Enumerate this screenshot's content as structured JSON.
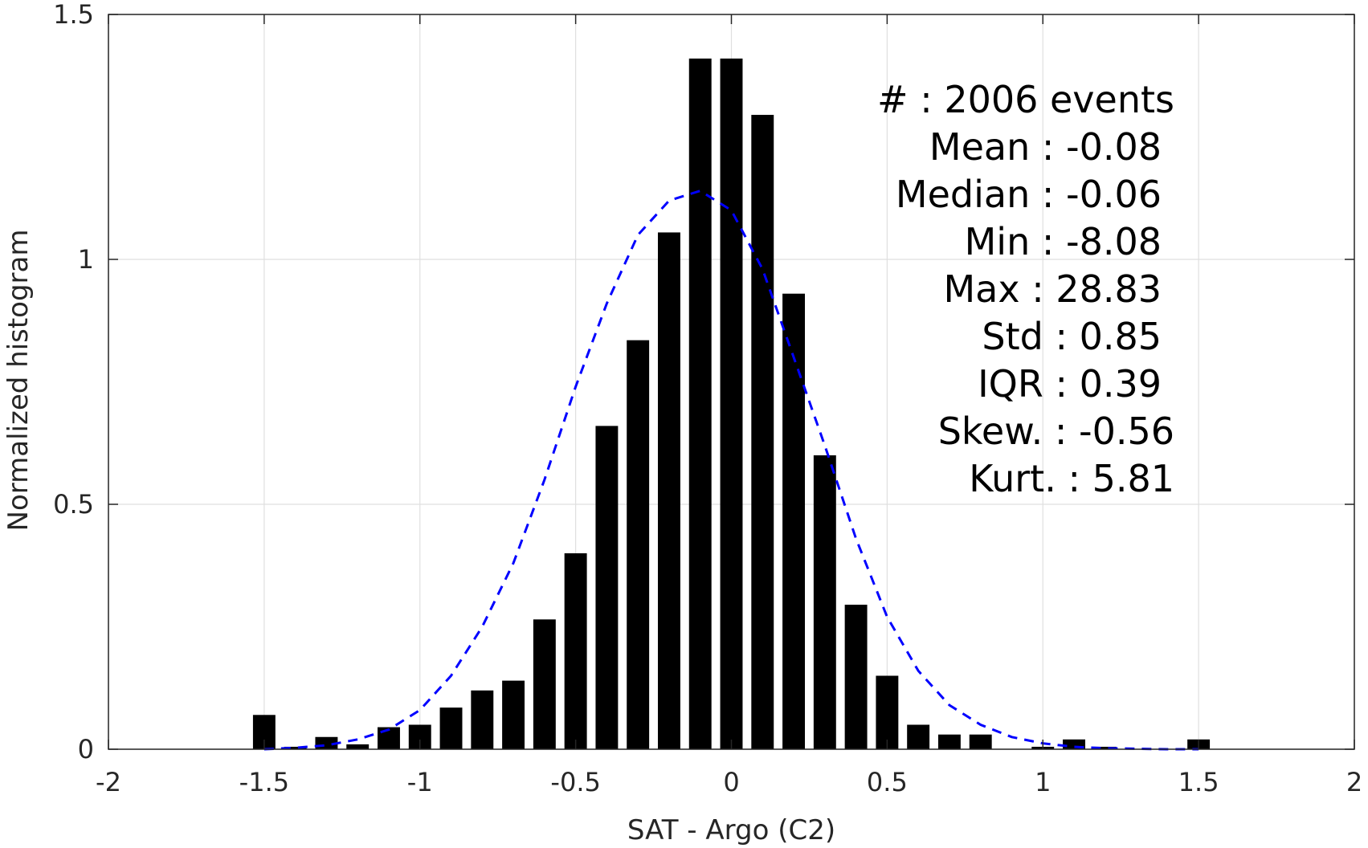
{
  "chart_data": {
    "type": "bar",
    "xlabel": "SAT - Argo (C2)",
    "ylabel": "Normalized histogram",
    "xlim": [
      -2,
      2
    ],
    "ylim": [
      0,
      1.5
    ],
    "xticks": [
      "-2",
      "-1.5",
      "-1",
      "-0.5",
      "0",
      "0.5",
      "1",
      "1.5",
      "2"
    ],
    "yticks": [
      "0",
      "0.5",
      "1",
      "1.5"
    ],
    "grid": true,
    "bar_color": "#000000",
    "bars": [
      {
        "x": -1.5,
        "y": 0.07
      },
      {
        "x": -1.4,
        "y": 0.005
      },
      {
        "x": -1.3,
        "y": 0.025
      },
      {
        "x": -1.2,
        "y": 0.01
      },
      {
        "x": -1.1,
        "y": 0.045
      },
      {
        "x": -1.0,
        "y": 0.05
      },
      {
        "x": -0.9,
        "y": 0.085
      },
      {
        "x": -0.8,
        "y": 0.12
      },
      {
        "x": -0.7,
        "y": 0.14
      },
      {
        "x": -0.6,
        "y": 0.265
      },
      {
        "x": -0.5,
        "y": 0.4
      },
      {
        "x": -0.4,
        "y": 0.66
      },
      {
        "x": -0.3,
        "y": 0.835
      },
      {
        "x": -0.2,
        "y": 1.055
      },
      {
        "x": -0.1,
        "y": 1.41
      },
      {
        "x": 0.0,
        "y": 1.41
      },
      {
        "x": 0.1,
        "y": 1.295
      },
      {
        "x": 0.2,
        "y": 0.93
      },
      {
        "x": 0.3,
        "y": 0.6
      },
      {
        "x": 0.4,
        "y": 0.295
      },
      {
        "x": 0.5,
        "y": 0.15
      },
      {
        "x": 0.6,
        "y": 0.05
      },
      {
        "x": 0.7,
        "y": 0.03
      },
      {
        "x": 0.8,
        "y": 0.03
      },
      {
        "x": 0.9,
        "y": 0.0
      },
      {
        "x": 1.0,
        "y": 0.005
      },
      {
        "x": 1.1,
        "y": 0.02
      },
      {
        "x": 1.2,
        "y": 0.005
      },
      {
        "x": 1.3,
        "y": 0.0
      },
      {
        "x": 1.4,
        "y": 0.0
      },
      {
        "x": 1.5,
        "y": 0.02
      }
    ],
    "fit_curve": {
      "style": "dashed",
      "color": "#0000ff",
      "x": [
        -1.5,
        -1.4,
        -1.3,
        -1.2,
        -1.1,
        -1.0,
        -0.9,
        -0.8,
        -0.7,
        -0.6,
        -0.5,
        -0.4,
        -0.3,
        -0.2,
        -0.1,
        0.0,
        0.1,
        0.2,
        0.3,
        0.4,
        0.5,
        0.6,
        0.7,
        0.8,
        0.9,
        1.0,
        1.1,
        1.2,
        1.3,
        1.4,
        1.5
      ],
      "y": [
        0.0,
        0.003,
        0.008,
        0.02,
        0.04,
        0.08,
        0.15,
        0.25,
        0.38,
        0.55,
        0.74,
        0.91,
        1.05,
        1.12,
        1.14,
        1.1,
        0.98,
        0.8,
        0.62,
        0.43,
        0.27,
        0.16,
        0.09,
        0.05,
        0.025,
        0.012,
        0.005,
        0.002,
        0.001,
        0.0,
        0.0
      ]
    },
    "annotations": [
      "#  : 2006 events",
      "Mean : -0.08",
      "Median : -0.06",
      "Min : -8.08",
      "Max : 28.83",
      "Std : 0.85",
      "IQR : 0.39",
      "Skew. : -0.56",
      "Kurt. : 5.81"
    ]
  }
}
